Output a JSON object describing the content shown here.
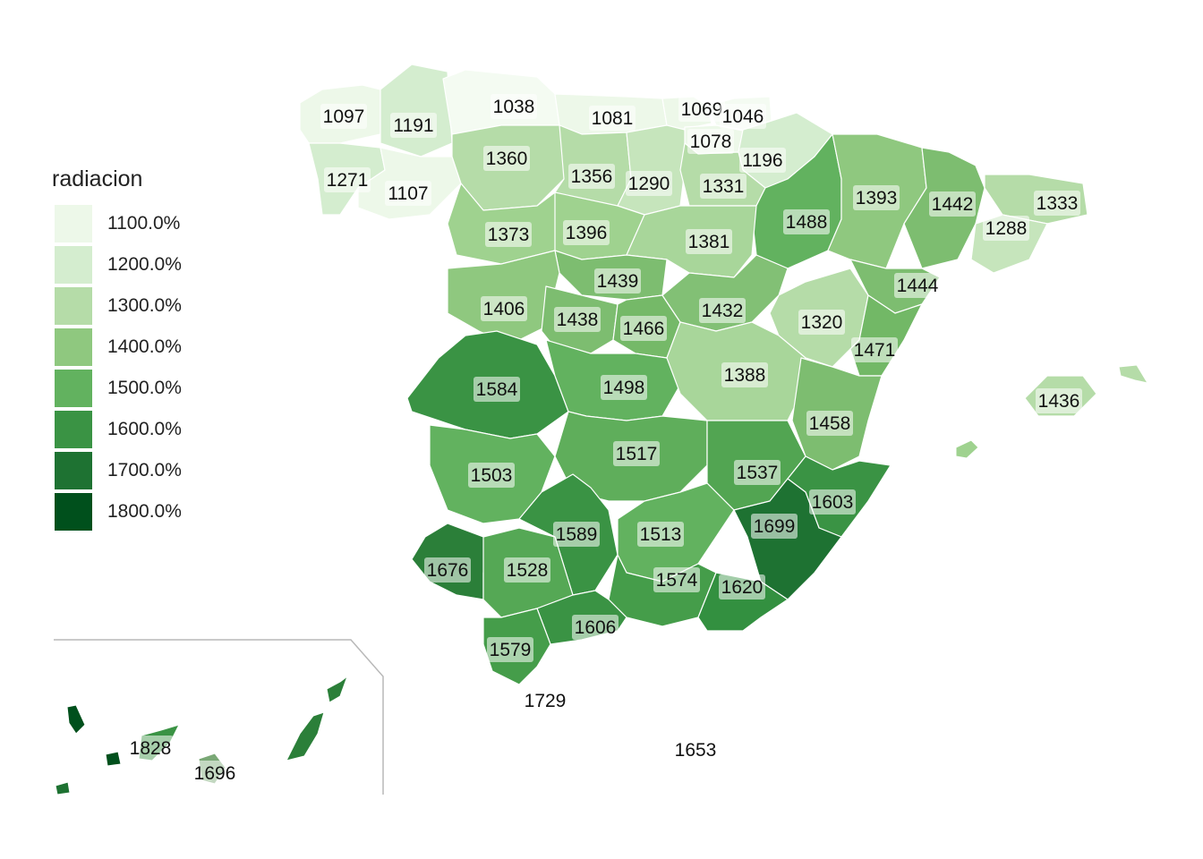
{
  "legend": {
    "title": "radiacion",
    "items": [
      {
        "label": "1100.0%",
        "color": "#edf8e9"
      },
      {
        "label": "1200.0%",
        "color": "#d4edcf"
      },
      {
        "label": "1300.0%",
        "color": "#b5dca8"
      },
      {
        "label": "1400.0%",
        "color": "#8fc87f"
      },
      {
        "label": "1500.0%",
        "color": "#62b25f"
      },
      {
        "label": "1600.0%",
        "color": "#3a9344"
      },
      {
        "label": "1700.0%",
        "color": "#1e7232"
      },
      {
        "label": "1800.0%",
        "color": "#00501c"
      }
    ]
  },
  "provinces": [
    {
      "value": "1097",
      "color": "#edf8e9"
    },
    {
      "value": "1191",
      "color": "#d4edcf"
    },
    {
      "value": "1038",
      "color": "#f4fbf2"
    },
    {
      "value": "1081",
      "color": "#edf8e9"
    },
    {
      "value": "1069",
      "color": "#edf8e9"
    },
    {
      "value": "1046",
      "color": "#f4fbf2"
    },
    {
      "value": "1078",
      "color": "#edf8e9"
    },
    {
      "value": "1196",
      "color": "#d4edcf"
    },
    {
      "value": "1271",
      "color": "#d4edcf"
    },
    {
      "value": "1107",
      "color": "#edf8e9"
    },
    {
      "value": "1360",
      "color": "#b5dca8"
    },
    {
      "value": "1356",
      "color": "#b5dca8"
    },
    {
      "value": "1290",
      "color": "#c6e5bc"
    },
    {
      "value": "1331",
      "color": "#b5dca8"
    },
    {
      "value": "1488",
      "color": "#62b25f"
    },
    {
      "value": "1393",
      "color": "#8fc87f"
    },
    {
      "value": "1442",
      "color": "#7dbd70"
    },
    {
      "value": "1333",
      "color": "#b5dca8"
    },
    {
      "value": "1288",
      "color": "#c6e5bc"
    },
    {
      "value": "1373",
      "color": "#9fd28f"
    },
    {
      "value": "1396",
      "color": "#9fd28f"
    },
    {
      "value": "1381",
      "color": "#a8d69a"
    },
    {
      "value": "1439",
      "color": "#7dbd70"
    },
    {
      "value": "1406",
      "color": "#8fc87f"
    },
    {
      "value": "1438",
      "color": "#7dbd70"
    },
    {
      "value": "1466",
      "color": "#75b968"
    },
    {
      "value": "1432",
      "color": "#82c075"
    },
    {
      "value": "1320",
      "color": "#b5dca8"
    },
    {
      "value": "1444",
      "color": "#7dbd70"
    },
    {
      "value": "1471",
      "color": "#72b866"
    },
    {
      "value": "1584",
      "color": "#3a9344"
    },
    {
      "value": "1498",
      "color": "#62b25f"
    },
    {
      "value": "1388",
      "color": "#a8d69a"
    },
    {
      "value": "1458",
      "color": "#7dbd70"
    },
    {
      "value": "1436",
      "color": "#b5dca8"
    },
    {
      "value": "1503",
      "color": "#62b25f"
    },
    {
      "value": "1517",
      "color": "#5fae5b"
    },
    {
      "value": "1537",
      "color": "#52a552"
    },
    {
      "value": "1603",
      "color": "#3a9344"
    },
    {
      "value": "1589",
      "color": "#3a9344"
    },
    {
      "value": "1513",
      "color": "#62b25f"
    },
    {
      "value": "1699",
      "color": "#1e7232"
    },
    {
      "value": "1676",
      "color": "#2b7f39"
    },
    {
      "value": "1528",
      "color": "#55a855"
    },
    {
      "value": "1574",
      "color": "#459d4a"
    },
    {
      "value": "1620",
      "color": "#339040"
    },
    {
      "value": "1606",
      "color": "#3a9344"
    },
    {
      "value": "1579",
      "color": "#459d4a"
    },
    {
      "value": "1729",
      "color": "#1e7232"
    },
    {
      "value": "1653",
      "color": "#2b7f39"
    },
    {
      "value": "1828",
      "color": "#00501c"
    },
    {
      "value": "1696",
      "color": "#7aa876"
    }
  ]
}
